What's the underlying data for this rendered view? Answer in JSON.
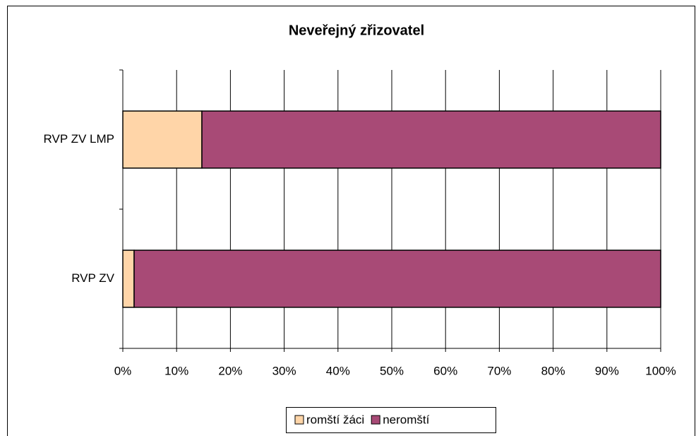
{
  "chart_data": {
    "type": "stacked-bar-horizontal",
    "title": "Neveřejný   zřizovatel",
    "categories": [
      "RVP ZV LMP",
      "RVP ZV"
    ],
    "series": [
      {
        "name": "romští žáci",
        "color": "#ffd5a8",
        "values": [
          14.7,
          2.1
        ]
      },
      {
        "name": "neromští",
        "color": "#a84a76",
        "values": [
          85.3,
          97.9
        ]
      }
    ],
    "xlim": [
      0,
      100
    ],
    "xticks": [
      {
        "value": 0,
        "label": "0%"
      },
      {
        "value": 10,
        "label": "10%"
      },
      {
        "value": 20,
        "label": "20%"
      },
      {
        "value": 30,
        "label": "30%"
      },
      {
        "value": 40,
        "label": "40%"
      },
      {
        "value": 50,
        "label": "50%"
      },
      {
        "value": 60,
        "label": "60%"
      },
      {
        "value": 70,
        "label": "70%"
      },
      {
        "value": 80,
        "label": "80%"
      },
      {
        "value": 90,
        "label": "90%"
      },
      {
        "value": 100,
        "label": "100%"
      }
    ],
    "grid": true,
    "legend": "bottom"
  }
}
